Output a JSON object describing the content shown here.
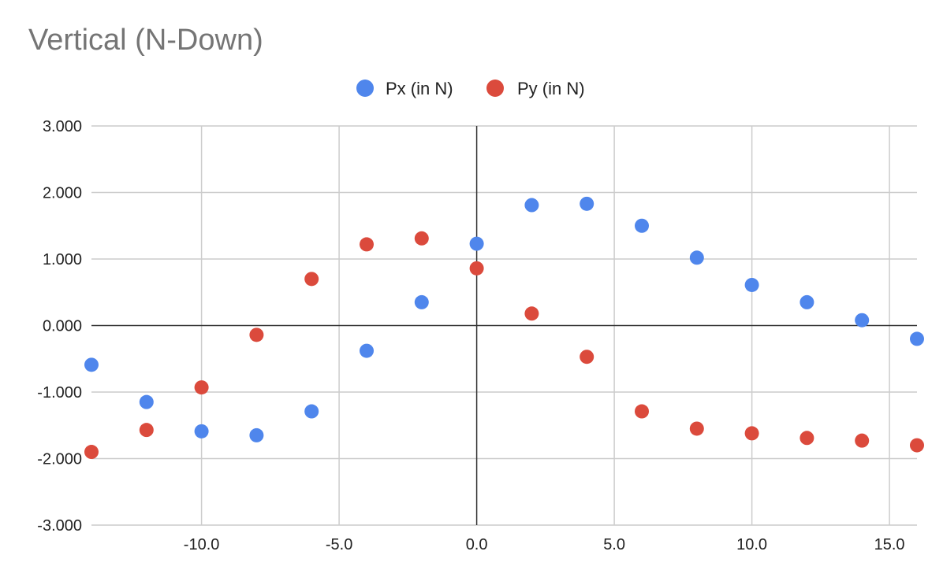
{
  "chart_data": {
    "type": "scatter",
    "title": "Vertical (N-Down)",
    "xlabel": "",
    "ylabel": "",
    "xlim": [
      -14,
      16
    ],
    "ylim": [
      -3,
      3
    ],
    "x_ticks": [
      -10,
      -5,
      0,
      5,
      10,
      15
    ],
    "x_tick_labels": [
      "-10.0",
      "-5.0",
      "0.0",
      "5.0",
      "10.0",
      "15.0"
    ],
    "y_ticks": [
      3,
      2,
      1,
      0,
      -1,
      -2,
      -3
    ],
    "y_tick_labels": [
      "3.000",
      "2.000",
      "1.000",
      "0.000",
      "-1.000",
      "-2.000",
      "-3.000"
    ],
    "grid": true,
    "legend_position": "top-center",
    "series": [
      {
        "name": "Px (in N)",
        "color": "#4f86ec",
        "x": [
          -14,
          -12,
          -10,
          -8,
          -6,
          -4,
          -2,
          0,
          2,
          4,
          6,
          8,
          10,
          12,
          14,
          16
        ],
        "y": [
          -0.59,
          -1.15,
          -1.59,
          -1.65,
          -1.29,
          -0.38,
          0.35,
          1.23,
          1.81,
          1.83,
          1.5,
          1.02,
          0.61,
          0.35,
          0.08,
          -0.2
        ]
      },
      {
        "name": "Py (in N)",
        "color": "#db4a3c",
        "x": [
          -14,
          -12,
          -10,
          -8,
          -6,
          -4,
          -2,
          0,
          2,
          4,
          6,
          8,
          10,
          12,
          14,
          16
        ],
        "y": [
          -1.9,
          -1.57,
          -0.93,
          -0.14,
          0.7,
          1.22,
          1.31,
          0.86,
          0.18,
          -0.47,
          -1.29,
          -1.55,
          -1.62,
          -1.69,
          -1.73,
          -1.8
        ]
      }
    ]
  }
}
